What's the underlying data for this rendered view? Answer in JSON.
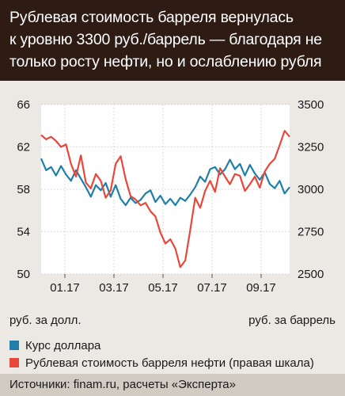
{
  "header": {
    "title_lines": [
      "Рублевая стоимость барреля вернулась",
      "к уровню 3300 руб./баррель — благодаря не",
      "только росту нефти, но и ослаблению рубля"
    ]
  },
  "chart_data": {
    "type": "line",
    "title": "Рублевая стоимость барреля вернулась к уровню 3300 руб./баррель — благодаря не только росту нефти, но и ослаблению рубля",
    "x_tick_labels": [
      "01.17",
      "03.17",
      "05.17",
      "07.17",
      "09.17"
    ],
    "left_axis": {
      "label": "руб. за долл.",
      "ticks": [
        66,
        62,
        58,
        54,
        50
      ],
      "ylim": [
        50,
        66
      ]
    },
    "right_axis": {
      "label": "руб. за баррель",
      "ticks": [
        3500,
        3250,
        3000,
        2750,
        2500
      ],
      "ylim": [
        2500,
        3500
      ]
    },
    "grid": true,
    "legend_position": "bottom",
    "series": [
      {
        "name": "Курс доллара",
        "axis": "left",
        "color": "#1f7fa8",
        "x": [
          0,
          2,
          4,
          6,
          8,
          10,
          12,
          14,
          16,
          18,
          20,
          22,
          24,
          26,
          28,
          30,
          32,
          34,
          36,
          38,
          40,
          42,
          44,
          46,
          48,
          50,
          52,
          54,
          56,
          58,
          60,
          62,
          64,
          66,
          68,
          70,
          72,
          74,
          76,
          78,
          80,
          82,
          84,
          86,
          88,
          90,
          92,
          94,
          96,
          98,
          100
        ],
        "values": [
          60.9,
          59.8,
          60.1,
          59.3,
          60.2,
          59.4,
          58.8,
          59.8,
          59.0,
          58.2,
          57.3,
          58.4,
          57.9,
          58.6,
          57.3,
          58.4,
          57.1,
          56.5,
          57.2,
          56.7,
          57.0,
          57.6,
          57.9,
          56.8,
          57.4,
          56.6,
          57.1,
          56.5,
          57.2,
          56.9,
          57.5,
          58.2,
          59.2,
          58.7,
          59.9,
          60.1,
          59.4,
          59.9,
          60.8,
          59.9,
          60.4,
          59.3,
          60.3,
          59.5,
          58.9,
          59.6,
          58.5,
          58.1,
          58.8,
          57.6,
          58.2
        ]
      },
      {
        "name": "Рублевая стоимость барреля нефти (правая шкала)",
        "axis": "right",
        "color": "#e8473b",
        "x": [
          0,
          2,
          4,
          6,
          8,
          10,
          12,
          14,
          16,
          18,
          20,
          22,
          24,
          26,
          28,
          30,
          32,
          34,
          36,
          38,
          40,
          42,
          44,
          46,
          48,
          50,
          52,
          54,
          56,
          58,
          60,
          62,
          64,
          66,
          68,
          70,
          72,
          74,
          76,
          78,
          80,
          82,
          84,
          86,
          88,
          90,
          92,
          94,
          96,
          98,
          100
        ],
        "values": [
          3320,
          3295,
          3310,
          3285,
          3250,
          3265,
          3150,
          3075,
          3200,
          3040,
          3005,
          3090,
          3050,
          2950,
          2995,
          3150,
          3195,
          3060,
          2960,
          2940,
          2905,
          2920,
          2870,
          2840,
          2745,
          2680,
          2705,
          2650,
          2540,
          2580,
          2760,
          2950,
          2890,
          2990,
          3050,
          2985,
          3125,
          3075,
          3030,
          3090,
          3080,
          2990,
          3030,
          3075,
          3010,
          3105,
          3150,
          3180,
          3260,
          3345,
          3310
        ]
      }
    ]
  }
}
